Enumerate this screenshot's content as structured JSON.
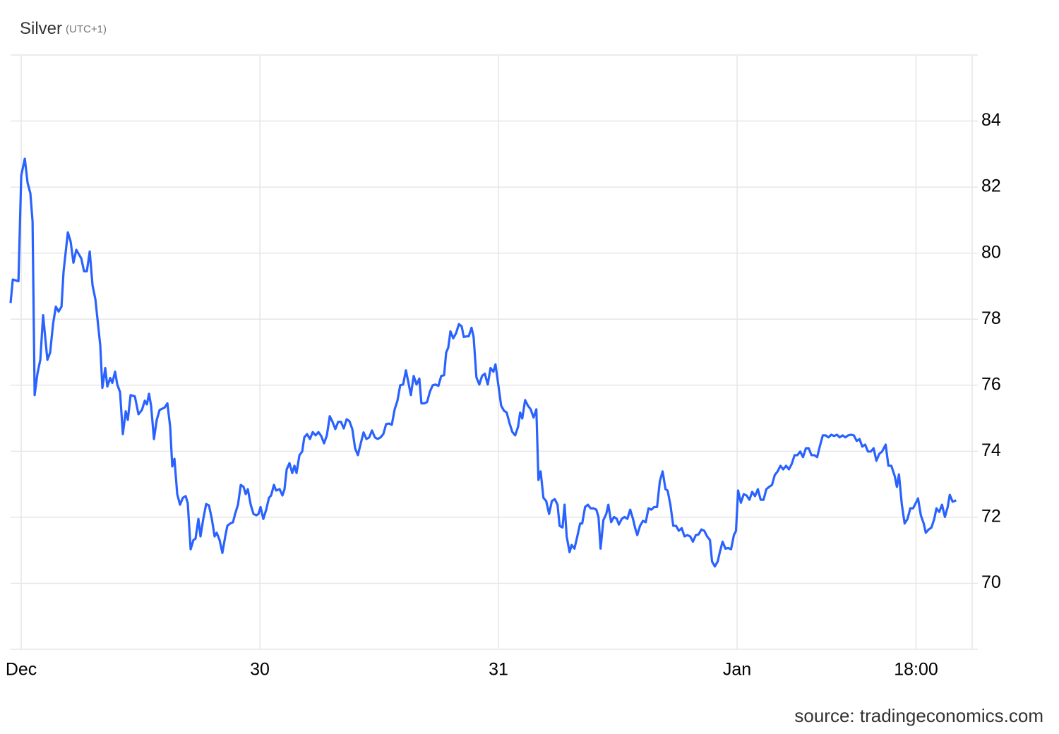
{
  "chart_data": {
    "type": "line",
    "title": "Silver",
    "subtitle": "(UTC+1)",
    "source": "source: tradingeconomics.com",
    "color": "#2962ff",
    "grid": true,
    "y_axis_side": "right",
    "xlim": [
      -1.07,
      95.5
    ],
    "ylim": [
      68,
      86
    ],
    "yticks": [
      70,
      72,
      74,
      76,
      78,
      80,
      82,
      84
    ],
    "xticks": [
      {
        "value": 0,
        "label": "Dec"
      },
      {
        "value": 24,
        "label": "30"
      },
      {
        "value": 48,
        "label": "31"
      },
      {
        "value": 72,
        "label": "Jan"
      },
      {
        "value": 90,
        "label": "18:00"
      }
    ],
    "x": [
      -1.07,
      -0.85,
      -0.28,
      0.0,
      0.36,
      0.64,
      0.92,
      1.14,
      1.35,
      1.63,
      1.92,
      2.2,
      2.63,
      2.91,
      3.2,
      3.48,
      3.76,
      4.05,
      4.26,
      4.69,
      4.97,
      5.25,
      5.54,
      6.04,
      6.32,
      6.6,
      6.89,
      7.17,
      7.46,
      7.95,
      8.16,
      8.45,
      8.66,
      8.95,
      9.16,
      9.44,
      9.66,
      9.94,
      10.22,
      10.51,
      10.72,
      11.0,
      11.43,
      11.79,
      12.14,
      12.43,
      12.64,
      12.85,
      13.06,
      13.35,
      13.63,
      13.92,
      14.41,
      14.7,
      14.98,
      15.19,
      15.41,
      15.69,
      15.97,
      16.26,
      16.54,
      16.75,
      17.04,
      17.32,
      17.53,
      17.82,
      18.03,
      18.31,
      18.6,
      18.88,
      19.17,
      19.45,
      19.66,
      19.95,
      20.23,
      20.52,
      20.73,
      21.02,
      21.3,
      21.51,
      21.8,
      22.08,
      22.36,
      22.58,
      22.79,
      23.08,
      23.36,
      23.64,
      23.86,
      24.07,
      24.35,
      24.64,
      24.92,
      25.13,
      25.42,
      25.63,
      25.99,
      26.27,
      26.48,
      26.7,
      26.98,
      27.26,
      27.48,
      27.69,
      27.98,
      28.26,
      28.47,
      28.75,
      29.04,
      29.32,
      29.61,
      29.89,
      30.17,
      30.46,
      30.74,
      31.03,
      31.31,
      31.59,
      31.88,
      32.16,
      32.44,
      32.73,
      33.01,
      33.3,
      33.58,
      33.86,
      34.15,
      34.43,
      34.72,
      35.0,
      35.28,
      35.57,
      35.85,
      36.14,
      36.42,
      36.7,
      36.99,
      37.27,
      37.56,
      37.84,
      38.12,
      38.41,
      38.69,
      38.98,
      39.19,
      39.47,
      39.76,
      40.04,
      40.25,
      40.54,
      40.82,
      41.11,
      41.39,
      41.67,
      41.96,
      42.24,
      42.53,
      42.74,
      42.95,
      43.17,
      43.45,
      43.73,
      44.02,
      44.3,
      44.51,
      44.8,
      45.01,
      45.29,
      45.5,
      45.78,
      46.07,
      46.35,
      46.63,
      46.92,
      47.2,
      47.49,
      47.7,
      47.98,
      48.27,
      48.55,
      48.83,
      49.12,
      49.4,
      49.68,
      49.97,
      50.18,
      50.39,
      50.68,
      50.96,
      51.24,
      51.53,
      51.81,
      52.02,
      52.24,
      52.52,
      52.8,
      53.09,
      53.37,
      53.66,
      53.94,
      54.15,
      54.44,
      54.65,
      54.86,
      55.15,
      55.36,
      55.64,
      55.93,
      56.21,
      56.42,
      56.71,
      56.99,
      57.27,
      57.56,
      57.84,
      58.06,
      58.27,
      58.55,
      58.84,
      59.05,
      59.33,
      59.62,
      59.9,
      60.11,
      60.4,
      60.68,
      60.96,
      61.25,
      61.53,
      61.75,
      61.96,
      62.24,
      62.53,
      62.81,
      63.09,
      63.38,
      63.66,
      63.95,
      64.23,
      64.51,
      64.8,
      65.01,
      65.29,
      65.58,
      65.86,
      66.14,
      66.43,
      66.71,
      67.0,
      67.28,
      67.56,
      67.85,
      68.13,
      68.41,
      68.7,
      68.98,
      69.27,
      69.48,
      69.76,
      70.05,
      70.26,
      70.54,
      70.83,
      71.11,
      71.39,
      71.68,
      71.89,
      72.1,
      72.38,
      72.67,
      72.95,
      73.24,
      73.52,
      73.8,
      74.09,
      74.37,
      74.66,
      74.94,
      75.22,
      75.51,
      75.79,
      76.08,
      76.36,
      76.64,
      76.93,
      77.21,
      77.5,
      77.78,
      78.06,
      78.35,
      78.63,
      78.92,
      79.2,
      79.48,
      79.77,
      80.05,
      80.33,
      80.62,
      80.9,
      81.19,
      81.47,
      81.75,
      82.04,
      82.32,
      82.61,
      82.89,
      83.17,
      83.46,
      83.74,
      84.03,
      84.31,
      84.59,
      84.88,
      85.16,
      85.44,
      85.73,
      86.01,
      86.3,
      86.58,
      86.94,
      87.22,
      87.51,
      87.86,
      88.07,
      88.28,
      88.57,
      88.85,
      89.14,
      89.42,
      89.7,
      89.99,
      90.2,
      90.48,
      90.77,
      90.98,
      91.27,
      91.55,
      91.83,
      92.05,
      92.33,
      92.61,
      92.9,
      93.18,
      93.39,
      93.68,
      94.03
    ],
    "values": [
      78.49,
      79.2,
      79.15,
      82.35,
      82.86,
      82.13,
      81.81,
      80.96,
      75.7,
      76.35,
      76.77,
      78.12,
      76.77,
      76.99,
      77.85,
      78.38,
      78.23,
      78.38,
      79.45,
      80.63,
      80.35,
      79.71,
      80.1,
      79.84,
      79.45,
      79.45,
      80.05,
      79.03,
      78.6,
      77.2,
      75.92,
      76.52,
      75.96,
      76.22,
      76.07,
      76.41,
      76.02,
      75.79,
      74.52,
      75.21,
      74.95,
      75.7,
      75.66,
      75.12,
      75.25,
      75.53,
      75.42,
      75.74,
      75.38,
      74.37,
      74.95,
      75.25,
      75.32,
      75.45,
      74.74,
      73.54,
      73.77,
      72.7,
      72.38,
      72.59,
      72.64,
      72.42,
      71.03,
      71.31,
      71.35,
      71.95,
      71.42,
      71.95,
      72.4,
      72.36,
      71.95,
      71.42,
      71.53,
      71.31,
      70.92,
      71.42,
      71.74,
      71.81,
      71.85,
      72.1,
      72.38,
      72.98,
      72.92,
      72.7,
      72.85,
      72.38,
      72.1,
      72.06,
      72.1,
      72.31,
      71.95,
      72.23,
      72.59,
      72.66,
      72.98,
      72.81,
      72.85,
      72.66,
      72.85,
      73.45,
      73.64,
      73.34,
      73.56,
      73.34,
      73.88,
      73.99,
      74.42,
      74.52,
      74.37,
      74.58,
      74.48,
      74.58,
      74.46,
      74.24,
      74.48,
      75.06,
      74.89,
      74.67,
      74.89,
      74.89,
      74.69,
      74.97,
      74.91,
      74.67,
      74.09,
      73.88,
      74.24,
      74.57,
      74.37,
      74.42,
      74.63,
      74.42,
      74.37,
      74.42,
      74.52,
      74.82,
      74.84,
      74.8,
      75.27,
      75.53,
      76.0,
      76.02,
      76.45,
      76.02,
      75.7,
      76.28,
      76.02,
      76.2,
      75.45,
      75.45,
      75.49,
      75.81,
      76.0,
      76.02,
      75.98,
      76.28,
      76.3,
      76.99,
      77.14,
      77.63,
      77.42,
      77.57,
      77.85,
      77.78,
      77.46,
      77.48,
      77.48,
      77.74,
      77.46,
      76.24,
      76.02,
      76.28,
      76.35,
      76.02,
      76.52,
      76.41,
      76.63,
      76.02,
      75.38,
      75.23,
      75.17,
      74.84,
      74.58,
      74.48,
      74.74,
      75.17,
      74.99,
      75.55,
      75.38,
      75.27,
      75.02,
      75.27,
      73.13,
      73.39,
      72.59,
      72.49,
      72.1,
      72.49,
      72.55,
      72.38,
      71.74,
      71.69,
      72.38,
      71.42,
      70.94,
      71.16,
      71.05,
      71.42,
      71.81,
      71.81,
      72.31,
      72.38,
      72.27,
      72.27,
      72.23,
      72.01,
      71.05,
      71.91,
      72.1,
      72.38,
      71.85,
      72.01,
      71.95,
      71.78,
      71.95,
      72.01,
      71.95,
      72.23,
      71.95,
      71.67,
      71.46,
      71.74,
      71.89,
      71.85,
      72.27,
      72.23,
      72.31,
      72.31,
      73.09,
      73.39,
      72.85,
      72.81,
      72.38,
      71.74,
      71.74,
      71.59,
      71.67,
      71.42,
      71.46,
      71.42,
      71.26,
      71.46,
      71.48,
      71.63,
      71.59,
      71.42,
      71.31,
      70.66,
      70.51,
      70.66,
      70.94,
      71.26,
      71.05,
      71.07,
      71.03,
      71.46,
      71.59,
      72.81,
      72.44,
      72.7,
      72.66,
      72.53,
      72.77,
      72.64,
      72.85,
      72.53,
      72.53,
      72.85,
      72.92,
      72.98,
      73.28,
      73.39,
      73.56,
      73.45,
      73.56,
      73.45,
      73.62,
      73.88,
      73.88,
      73.99,
      73.82,
      74.09,
      74.09,
      73.88,
      73.88,
      73.82,
      74.16,
      74.48,
      74.48,
      74.42,
      74.5,
      74.46,
      74.5,
      74.42,
      74.48,
      74.42,
      74.48,
      74.5,
      74.48,
      74.31,
      74.37,
      74.14,
      74.2,
      73.99,
      73.99,
      74.09,
      73.71,
      73.92,
      73.99,
      74.2,
      73.56,
      73.56,
      73.24,
      72.92,
      73.3,
      72.38,
      71.81,
      71.95,
      72.27,
      72.27,
      72.44,
      72.57,
      72.06,
      71.81,
      71.53,
      71.63,
      71.69,
      71.95,
      72.27,
      72.16,
      72.38,
      72.01,
      72.31,
      72.68,
      72.47,
      72.51
    ]
  }
}
